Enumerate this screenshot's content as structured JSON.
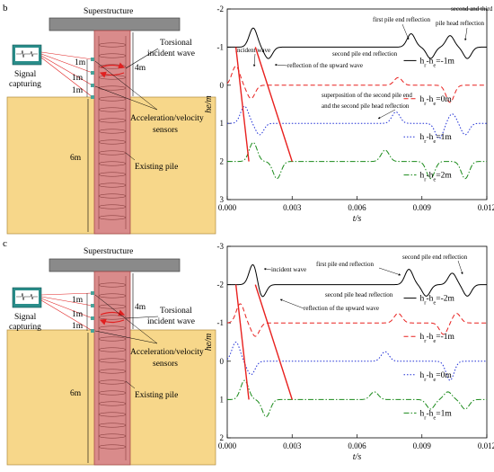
{
  "figure": [
    {
      "panel_label": "b",
      "schematic": {
        "superstructure": "Superstructure",
        "torsional": "Torsional",
        "incident_wave": "incident wave",
        "four_m": "4m",
        "signal": "Signal",
        "capturing": "capturing",
        "d1": "1m",
        "d2": "1m",
        "d3": "1m",
        "accel": "Acceleration/velocity",
        "sensors": "sensors",
        "six_m": "6m",
        "existing_pile": "Existing pile"
      }
    },
    {
      "panel_label": "c",
      "schematic": {
        "superstructure": "Superstructure",
        "torsional": "Torsional",
        "incident_wave": "incident wave",
        "four_m": "4m",
        "signal": "Signal",
        "capturing": "capturing",
        "d1": "1m",
        "d2": "1m",
        "d3": "1m",
        "accel": "Acceleration/velocity",
        "sensors": "sensors",
        "six_m": "6m",
        "existing_pile": "Existing pile"
      }
    }
  ],
  "chart_data": [
    {
      "type": "line",
      "xlabel": "t/s",
      "ylabel": "he/m",
      "xlim": [
        0,
        0.012
      ],
      "ylim": [
        3,
        -2
      ],
      "x_ticks": [
        "0.000",
        "0.003",
        "0.006",
        "0.009",
        "0.012"
      ],
      "y_ticks": [
        "-2",
        "-1",
        "0",
        "1",
        "2",
        "3"
      ],
      "grid": false,
      "series": [
        {
          "name": "hr-he=-1m",
          "label_main": "h",
          "label_sub1": "r",
          "label_mid": "-h",
          "label_sub2": "e",
          "label_end": "=-1m",
          "color": "#000000",
          "dash": "solid",
          "baseline": -1,
          "pulses": [
            [
              0.0012,
              -0.5
            ],
            [
              0.0019,
              0.3
            ],
            [
              0.0085,
              -0.35
            ],
            [
              0.0094,
              0.3
            ],
            [
              0.0103,
              -0.3
            ],
            [
              0.0111,
              0.3
            ]
          ]
        },
        {
          "name": "hr-he=0m",
          "label_main": "h",
          "label_sub1": "r",
          "label_mid": "-h",
          "label_sub2": "e",
          "label_end": "=0m",
          "color": "#e8201e",
          "dash": "5,3",
          "baseline": 0,
          "pulses": [
            [
              0.0004,
              -0.5
            ],
            [
              0.0011,
              0.35
            ],
            [
              0.0079,
              -0.2
            ],
            [
              0.0103,
              0.45
            ]
          ]
        },
        {
          "name": "hr-he=1m",
          "label_main": "h",
          "label_sub1": "r",
          "label_mid": "-h",
          "label_sub2": "e",
          "label_end": "=1m",
          "color": "#1f2fd6",
          "dash": "1.5,2",
          "baseline": 1,
          "pulses": [
            [
              0.0008,
              -0.45
            ],
            [
              0.0015,
              0.3
            ],
            [
              0.0078,
              -0.3
            ],
            [
              0.0098,
              0.4
            ],
            [
              0.0104,
              -0.25
            ],
            [
              0.011,
              0.3
            ]
          ]
        },
        {
          "name": "hr-he=2m",
          "label_main": "h",
          "label_sub1": "r",
          "label_mid": "-h",
          "label_sub2": "e",
          "label_end": "=2m",
          "color": "#1a8a1a",
          "dash": "6,2,1.5,2",
          "baseline": 2,
          "pulses": [
            [
              0.0012,
              -0.5
            ],
            [
              0.0023,
              0.45
            ],
            [
              0.0073,
              -0.3
            ],
            [
              0.0094,
              0.45
            ],
            [
              0.011,
              0.45
            ]
          ]
        }
      ],
      "incident_lines": [
        [
          [
            0.0004,
            -1.0
          ],
          [
            0.001,
            2.0
          ]
        ],
        [
          [
            0.0013,
            -1.0
          ],
          [
            0.003,
            2.0
          ]
        ]
      ],
      "annotations": [
        "incident wave",
        "first pile end reflection",
        "second and third",
        "pile head reflection",
        "second pile end reflection",
        "reflection of the upward wave",
        "superposition of the second pile end",
        "and the second pile head reflection"
      ]
    },
    {
      "type": "line",
      "xlabel": "t/s",
      "ylabel": "he/m",
      "xlim": [
        0,
        0.012
      ],
      "ylim": [
        2,
        -3
      ],
      "x_ticks": [
        "0.000",
        "0.003",
        "0.006",
        "0.009",
        "0.012"
      ],
      "y_ticks": [
        "-3",
        "-2",
        "-1",
        "0",
        "1",
        "2"
      ],
      "grid": false,
      "series": [
        {
          "name": "hr-he=-2m",
          "label_main": "h",
          "label_sub1": "r",
          "label_mid": "-h",
          "label_sub2": "e",
          "label_end": "=-2m",
          "color": "#000000",
          "dash": "solid",
          "baseline": -2,
          "pulses": [
            [
              0.0012,
              -0.55
            ],
            [
              0.0016,
              0.35
            ],
            [
              0.0084,
              -0.4
            ],
            [
              0.0092,
              0.3
            ],
            [
              0.0104,
              -0.3
            ],
            [
              0.0111,
              0.3
            ]
          ]
        },
        {
          "name": "hr-he=-1m",
          "label_main": "h",
          "label_sub1": "r",
          "label_mid": "-h",
          "label_sub2": "e",
          "label_end": "=-1m",
          "color": "#e8201e",
          "dash": "5,3",
          "baseline": -1,
          "pulses": [
            [
              0.0006,
              -0.5
            ],
            [
              0.0013,
              0.35
            ],
            [
              0.0079,
              -0.25
            ],
            [
              0.01,
              0.3
            ],
            [
              0.0106,
              -0.25
            ]
          ]
        },
        {
          "name": "hr-he=0m",
          "label_main": "h",
          "label_sub1": "r",
          "label_mid": "-h",
          "label_sub2": "e",
          "label_end": "=0m",
          "color": "#1f2fd6",
          "dash": "1.5,2",
          "baseline": 0,
          "pulses": [
            [
              0.0004,
              -0.5
            ],
            [
              0.0011,
              0.35
            ],
            [
              0.0073,
              -0.25
            ],
            [
              0.0103,
              0.5
            ]
          ]
        },
        {
          "name": "hr-he=1m",
          "label_main": "h",
          "label_sub1": "r",
          "label_mid": "-h",
          "label_sub2": "e",
          "label_end": "=1m",
          "color": "#1a8a1a",
          "dash": "6,2,1.5,2",
          "baseline": 1,
          "pulses": [
            [
              0.0008,
              -0.5
            ],
            [
              0.0018,
              0.45
            ],
            [
              0.0068,
              -0.2
            ],
            [
              0.0094,
              0.25
            ],
            [
              0.0102,
              -0.2
            ],
            [
              0.011,
              0.25
            ]
          ]
        }
      ],
      "incident_lines": [
        [
          [
            0.0004,
            -2.0
          ],
          [
            0.001,
            1.0
          ]
        ],
        [
          [
            0.0013,
            -2.0
          ],
          [
            0.003,
            1.0
          ]
        ]
      ],
      "annotations": [
        "first pile end reflection",
        "incident wave",
        "second pile end reflection",
        "second pile head reflection",
        "reflection of the upward wave"
      ]
    }
  ]
}
